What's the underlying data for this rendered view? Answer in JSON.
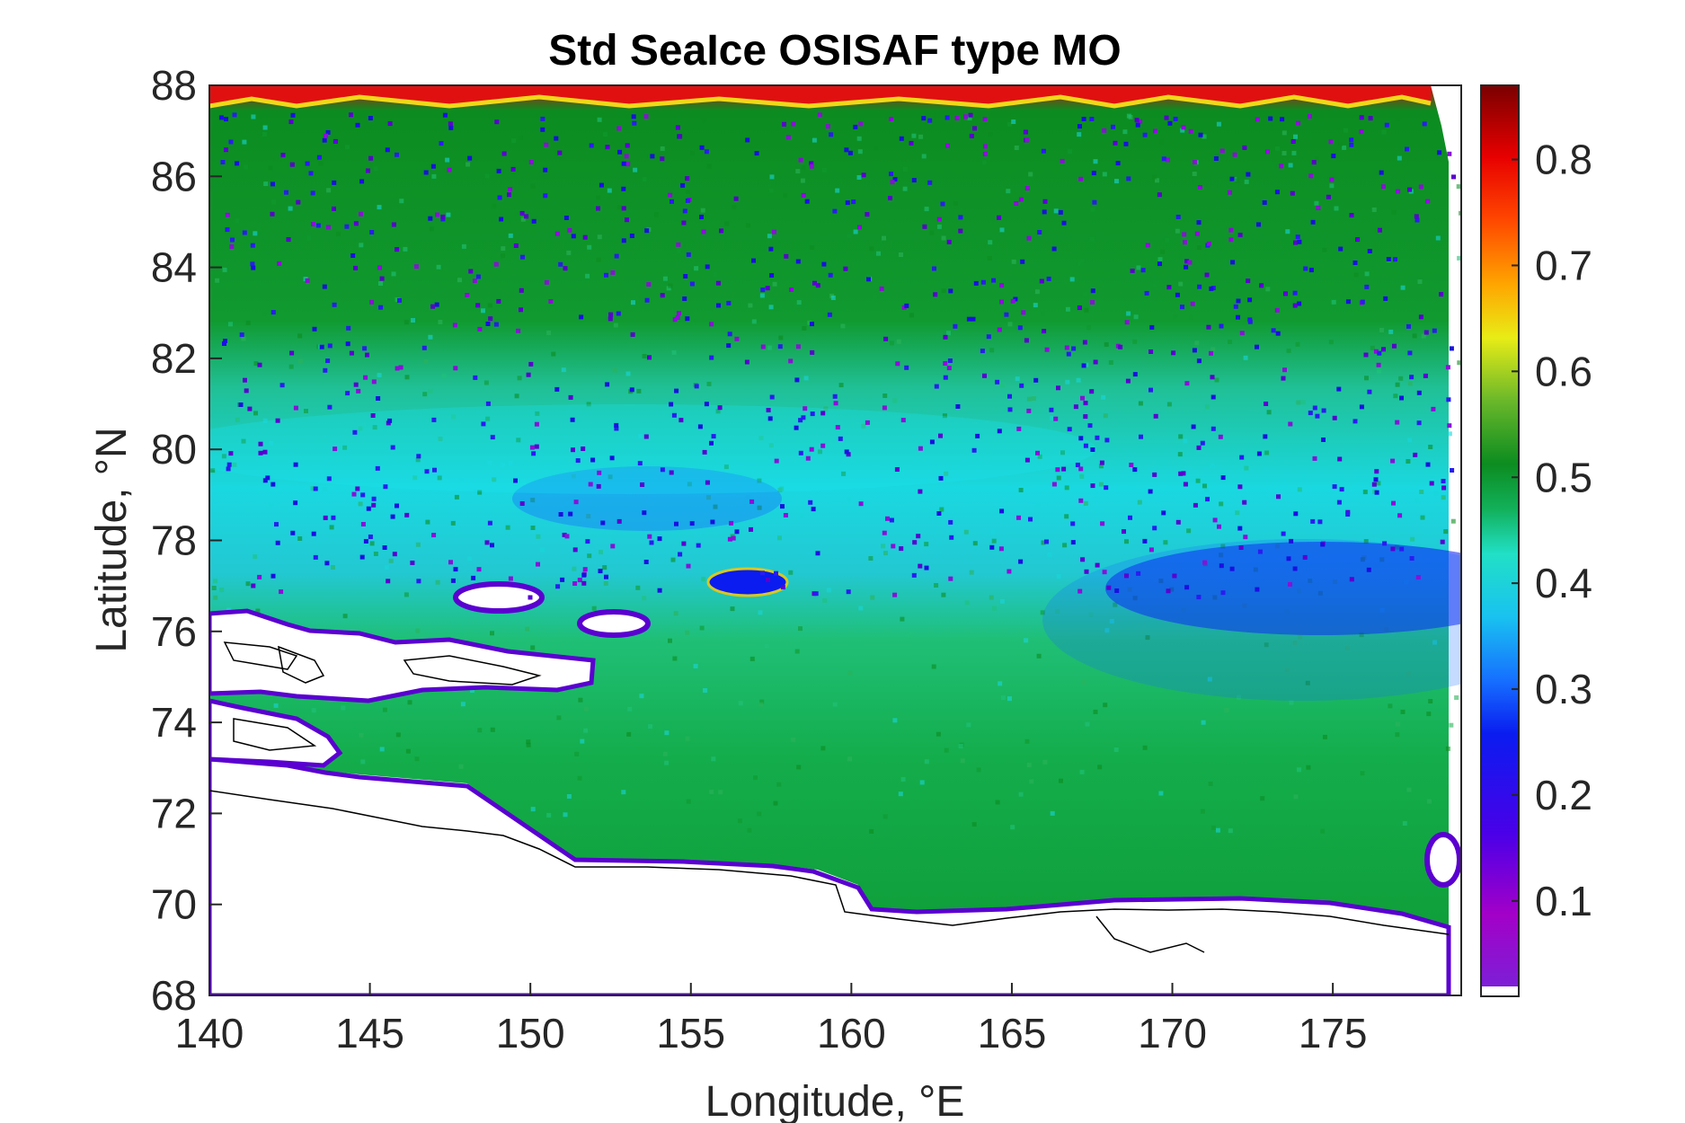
{
  "chart_data": {
    "type": "heatmap",
    "title": "Std SeaIce OSISAF type MO",
    "xlabel": "Longitude, °E",
    "ylabel": "Latitude, °N",
    "xlim": [
      140,
      179
    ],
    "ylim": [
      68,
      88
    ],
    "xticks": [
      140,
      145,
      150,
      155,
      160,
      165,
      170,
      175
    ],
    "yticks": [
      68,
      70,
      72,
      74,
      76,
      78,
      80,
      82,
      84,
      86,
      88
    ],
    "colorbar": {
      "range": [
        0.01,
        0.87
      ],
      "ticks": [
        0.1,
        0.2,
        0.3,
        0.4,
        0.5,
        0.6,
        0.7,
        0.8
      ],
      "colormap": [
        "#7d1fd6",
        "#a300c8",
        "#4a00e8",
        "#0a1cf0",
        "#1670ff",
        "#19c2f0",
        "#21e0c6",
        "#12b05a",
        "#0c8c20",
        "#6ab82a",
        "#e8ec16",
        "#ffa400",
        "#ff4800",
        "#e80000",
        "#7a0000"
      ],
      "nodata_color": "#ffffff"
    },
    "field_bands": [
      {
        "lat_range": [
          87.4,
          88
        ],
        "value": 0.8
      },
      {
        "lat_range": [
          84,
          87.4
        ],
        "value": 0.5
      },
      {
        "lat_range": [
          81.5,
          84
        ],
        "value": 0.42
      },
      {
        "lat_range": [
          78.5,
          81.5
        ],
        "value": 0.38
      },
      {
        "lat_range": [
          74,
          78.5
        ],
        "value": 0.45
      },
      {
        "lat_range": [
          70,
          74
        ],
        "value": 0.47
      }
    ],
    "features": [
      {
        "label": "low-std region",
        "lon_range": [
          166,
          179
        ],
        "lat_range": [
          76,
          78.5
        ],
        "value": 0.27
      },
      {
        "label": "low-std region",
        "lon_range": [
          151,
          156
        ],
        "lat_range": [
          78,
          79.6
        ],
        "value": 0.33
      },
      {
        "label": "islands",
        "lon": [
          149,
          153,
          157
        ],
        "lat": [
          76.9,
          76.3,
          77.1
        ]
      }
    ],
    "grid": false
  }
}
